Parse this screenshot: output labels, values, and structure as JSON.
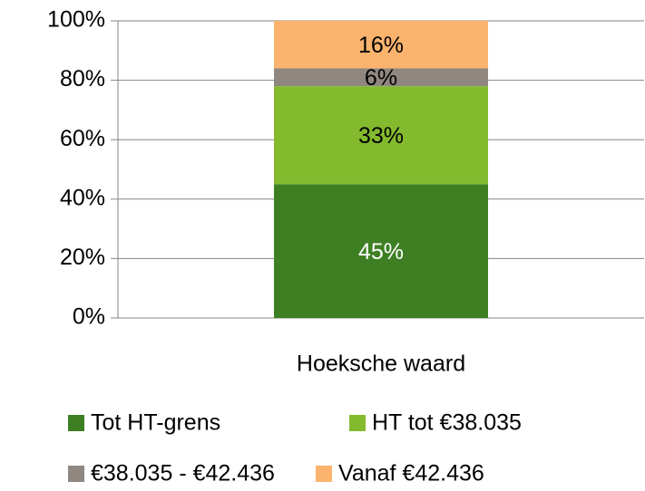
{
  "chart_data": {
    "type": "bar",
    "stacked": true,
    "categories": [
      "Hoeksche waard"
    ],
    "series": [
      {
        "name": "Tot HT-grens",
        "color": "#3f7f24",
        "values": [
          45
        ],
        "value_labels": [
          "45%"
        ],
        "label_color": "#ffffff"
      },
      {
        "name": "HT tot €38.035",
        "color": "#84ba2e",
        "values": [
          33
        ],
        "value_labels": [
          "33%"
        ],
        "label_color": "#000000"
      },
      {
        "name": "€38.035 - €42.436",
        "color": "#8f8780",
        "values": [
          6
        ],
        "value_labels": [
          "6%"
        ],
        "label_color": "#000000"
      },
      {
        "name": "Vanaf €42.436",
        "color": "#fbb36e",
        "values": [
          16
        ],
        "value_labels": [
          "16%"
        ],
        "label_color": "#000000"
      }
    ],
    "ylim": [
      0,
      100
    ],
    "yticks": [
      {
        "value": 0,
        "label": "0%"
      },
      {
        "value": 20,
        "label": "20%"
      },
      {
        "value": 40,
        "label": "40%"
      },
      {
        "value": 60,
        "label": "60%"
      },
      {
        "value": 80,
        "label": "80%"
      },
      {
        "value": 100,
        "label": "100%"
      }
    ],
    "grid": true,
    "legend": "bottom"
  }
}
